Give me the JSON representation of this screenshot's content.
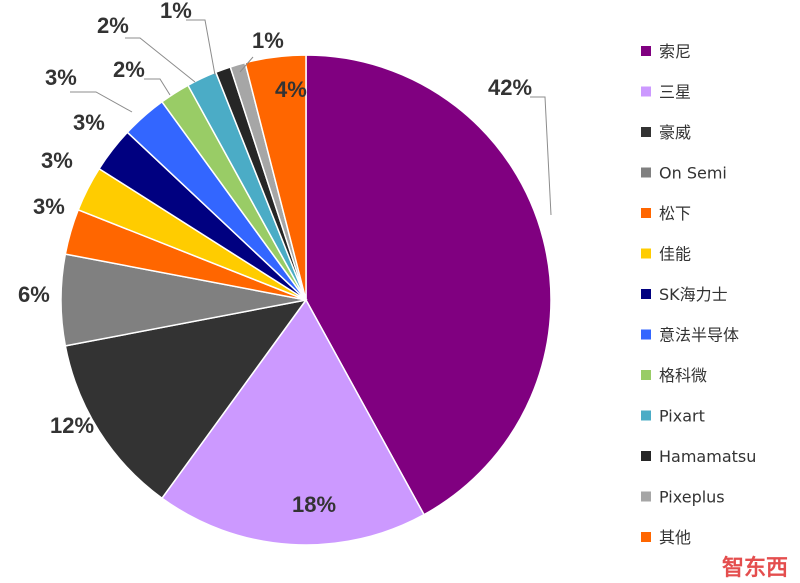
{
  "chart_data": {
    "type": "pie",
    "title": "",
    "slices": [
      {
        "label": "索尼",
        "value": 42,
        "value_label": "42%",
        "color": "#800080"
      },
      {
        "label": "三星",
        "value": 18,
        "value_label": "18%",
        "color": "#cc99ff"
      },
      {
        "label": "豪威",
        "value": 12,
        "value_label": "12%",
        "color": "#333333"
      },
      {
        "label": "On Semi",
        "value": 6,
        "value_label": "6%",
        "color": "#808080"
      },
      {
        "label": "松下",
        "value": 3,
        "value_label": "3%",
        "color": "#ff6600"
      },
      {
        "label": "佳能",
        "value": 3,
        "value_label": "3%",
        "color": "#ffcc00"
      },
      {
        "label": "SK海力士",
        "value": 3,
        "value_label": "3%",
        "color": "#000080"
      },
      {
        "label": "意法半导体",
        "value": 3,
        "value_label": "3%",
        "color": "#3366ff"
      },
      {
        "label": "格科微",
        "value": 2,
        "value_label": "2%",
        "color": "#99cc66"
      },
      {
        "label": "Pixart",
        "value": 2,
        "value_label": "2%",
        "color": "#4bacc6"
      },
      {
        "label": "Hamamatsu",
        "value": 1,
        "value_label": "1%",
        "color": "#262626"
      },
      {
        "label": "Pixeplus",
        "value": 1,
        "value_label": "1%",
        "color": "#a6a6a6"
      },
      {
        "label": "其他",
        "value": 4,
        "value_label": "4%",
        "color": "#ff6600"
      }
    ],
    "legend_position": "right",
    "start_angle_deg": 0,
    "direction": "clockwise"
  },
  "watermark": {
    "text": "智东西"
  }
}
